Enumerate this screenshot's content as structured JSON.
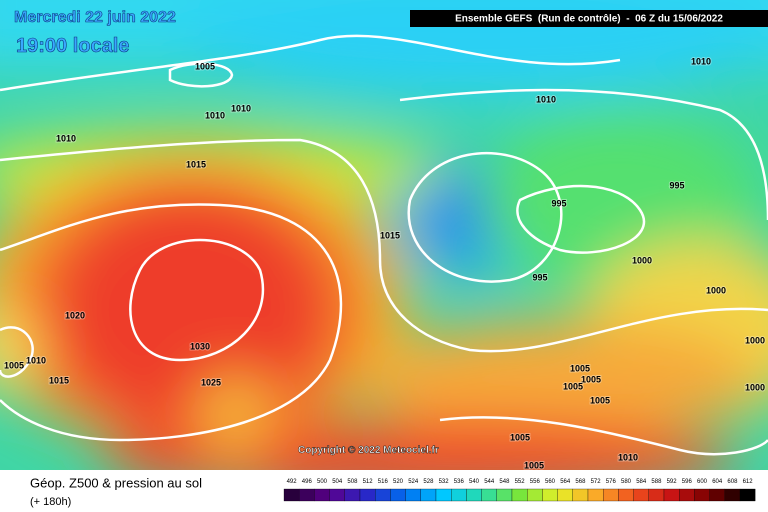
{
  "header": {
    "date": "Mercredi 22 juin 2022",
    "time": "19:00 locale",
    "model": "Ensemble GEFS  (Run de contrôle)  -  06 Z du 15/06/2022"
  },
  "copyright": "Copyright © 2022 Meteociel.fr",
  "footer": {
    "title": "Géop. Z500 & pression au sol",
    "subtitle": "(+ 180h)"
  },
  "scale": {
    "labels": [
      492,
      496,
      500,
      504,
      508,
      512,
      516,
      520,
      524,
      528,
      532,
      536,
      540,
      544,
      548,
      552,
      556,
      560,
      564,
      568,
      572,
      576,
      580,
      584,
      588,
      592,
      596,
      600,
      604,
      608,
      612
    ]
  },
  "isobar_labels": [
    1005,
    1010,
    1010,
    1010,
    1015,
    1010,
    1010,
    995,
    995,
    1015,
    995,
    1000,
    1000,
    1020,
    1010,
    1005,
    1015,
    1030,
    1025,
    1005,
    1005,
    1005,
    1005,
    1000,
    1000,
    1005,
    1010,
    1005
  ]
}
